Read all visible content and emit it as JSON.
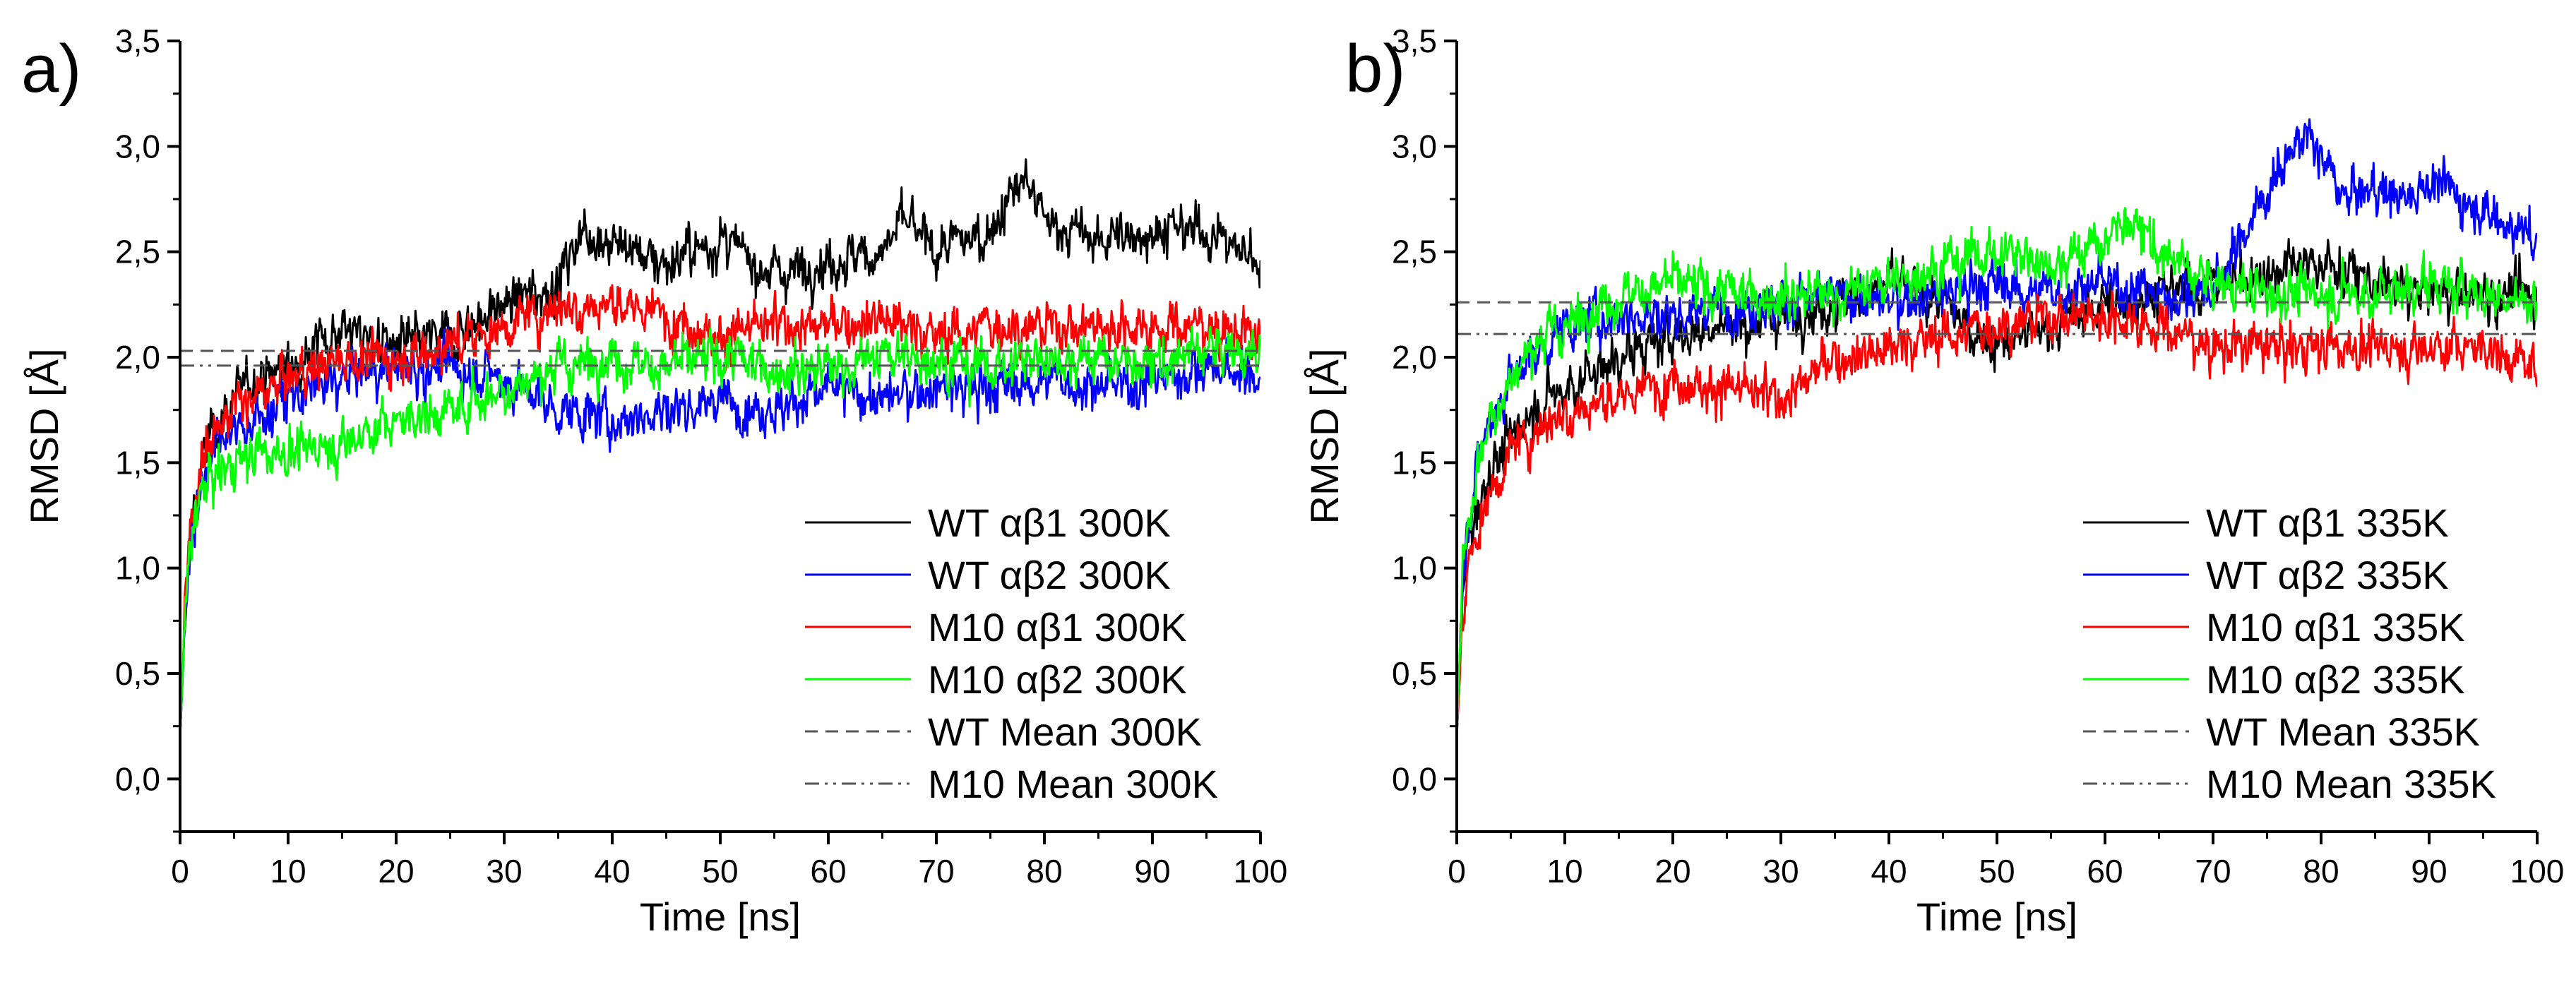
{
  "chart_data": [
    {
      "panel_label": "a)",
      "type": "line",
      "xlabel": "Time [ns]",
      "ylabel": "RMSD [Å]",
      "xlim": [
        0,
        100
      ],
      "ylim": [
        -0.25,
        3.5
      ],
      "x_ticks": [
        0,
        10,
        20,
        30,
        40,
        50,
        60,
        70,
        80,
        90,
        100
      ],
      "y_ticks": [
        0.0,
        0.5,
        1.0,
        1.5,
        2.0,
        2.5,
        3.0,
        3.5
      ],
      "y_tick_labels": [
        "0,0",
        "0,5",
        "1,0",
        "1,5",
        "2,0",
        "2,5",
        "3,0",
        "3,5"
      ],
      "legend_position": "bottom-right",
      "series": [
        {
          "name": "WT αβ1 300K",
          "color": "#000000",
          "style": "solid",
          "x": [
            0,
            0.5,
            1,
            2,
            3,
            5,
            7,
            10,
            12,
            15,
            17,
            20,
            25,
            30,
            35,
            37,
            40,
            45,
            50,
            55,
            60,
            65,
            67,
            70,
            75,
            78,
            80,
            85,
            90,
            95,
            100
          ],
          "values": [
            0.2,
            0.8,
            1.2,
            1.5,
            1.65,
            1.8,
            1.9,
            1.95,
            2.05,
            2.15,
            2.1,
            2.05,
            2.1,
            2.25,
            2.35,
            2.6,
            2.55,
            2.45,
            2.55,
            2.4,
            2.45,
            2.5,
            2.65,
            2.5,
            2.6,
            2.85,
            2.65,
            2.55,
            2.6,
            2.6,
            2.45
          ]
        },
        {
          "name": "WT αβ2 300K",
          "color": "#0000ff",
          "style": "solid",
          "x": [
            0,
            0.5,
            1,
            2,
            3,
            5,
            7,
            10,
            15,
            20,
            25,
            30,
            35,
            40,
            45,
            50,
            55,
            60,
            65,
            70,
            75,
            80,
            85,
            90,
            95,
            100
          ],
          "values": [
            0.2,
            0.8,
            1.15,
            1.4,
            1.55,
            1.65,
            1.7,
            1.8,
            1.9,
            1.95,
            1.95,
            1.9,
            1.75,
            1.7,
            1.75,
            1.8,
            1.75,
            1.85,
            1.8,
            1.85,
            1.85,
            1.9,
            1.85,
            1.9,
            1.95,
            1.9
          ]
        },
        {
          "name": "M10 αβ1 300K",
          "color": "#ff0000",
          "style": "solid",
          "x": [
            0,
            0.5,
            1,
            2,
            3,
            5,
            7,
            10,
            15,
            20,
            25,
            30,
            35,
            40,
            45,
            50,
            55,
            60,
            65,
            70,
            75,
            80,
            85,
            90,
            95,
            100
          ],
          "values": [
            0.2,
            0.85,
            1.25,
            1.5,
            1.65,
            1.75,
            1.8,
            1.9,
            2.0,
            2.0,
            2.05,
            2.15,
            2.25,
            2.25,
            2.2,
            2.1,
            2.15,
            2.15,
            2.2,
            2.1,
            2.15,
            2.15,
            2.15,
            2.15,
            2.15,
            2.1
          ]
        },
        {
          "name": "M10 αβ2 300K",
          "color": "#00ff00",
          "style": "solid",
          "x": [
            0,
            0.5,
            1,
            2,
            3,
            5,
            7,
            10,
            15,
            20,
            25,
            30,
            35,
            40,
            45,
            50,
            55,
            60,
            65,
            70,
            75,
            80,
            85,
            90,
            95,
            100
          ],
          "values": [
            0.2,
            0.8,
            1.15,
            1.35,
            1.45,
            1.5,
            1.55,
            1.55,
            1.6,
            1.7,
            1.75,
            1.85,
            1.95,
            2.0,
            1.95,
            2.0,
            1.95,
            1.95,
            2.0,
            2.0,
            1.95,
            2.0,
            2.0,
            1.95,
            2.05,
            2.0
          ]
        },
        {
          "name": "WT Mean 300K",
          "color": "#555555",
          "style": "dashed",
          "x": [
            0,
            100
          ],
          "values": [
            2.03,
            2.03
          ]
        },
        {
          "name": "M10 Mean 300K",
          "color": "#555555",
          "style": "dashdotdot",
          "x": [
            0,
            100
          ],
          "values": [
            1.96,
            1.96
          ]
        }
      ]
    },
    {
      "panel_label": "b)",
      "type": "line",
      "xlabel": "Time [ns]",
      "ylabel": "RMSD [Å]",
      "xlim": [
        0,
        100
      ],
      "ylim": [
        -0.25,
        3.5
      ],
      "x_ticks": [
        0,
        10,
        20,
        30,
        40,
        50,
        60,
        70,
        80,
        90,
        100
      ],
      "y_ticks": [
        0.0,
        0.5,
        1.0,
        1.5,
        2.0,
        2.5,
        3.0,
        3.5
      ],
      "y_tick_labels": [
        "0,0",
        "0,5",
        "1,0",
        "1,5",
        "2,0",
        "2,5",
        "3,0",
        "3,5"
      ],
      "legend_position": "bottom-right",
      "series": [
        {
          "name": "WT αβ1 335K",
          "color": "#000000",
          "style": "solid",
          "x": [
            0,
            0.5,
            1,
            2,
            3,
            5,
            7,
            10,
            15,
            20,
            25,
            30,
            35,
            40,
            45,
            50,
            55,
            60,
            65,
            70,
            75,
            80,
            85,
            90,
            95,
            100
          ],
          "values": [
            0.2,
            0.8,
            1.1,
            1.3,
            1.45,
            1.6,
            1.75,
            1.85,
            2.0,
            2.1,
            2.15,
            2.2,
            2.25,
            2.35,
            2.25,
            2.05,
            2.15,
            2.25,
            2.3,
            2.35,
            2.4,
            2.45,
            2.35,
            2.3,
            2.3,
            2.3
          ]
        },
        {
          "name": "WT αβ2 335K",
          "color": "#0000ff",
          "style": "solid",
          "x": [
            0,
            0.5,
            1,
            2,
            3,
            5,
            7,
            10,
            15,
            20,
            25,
            30,
            35,
            40,
            45,
            50,
            55,
            60,
            65,
            70,
            72,
            75,
            78,
            80,
            82,
            85,
            88,
            90,
            95,
            100
          ],
          "values": [
            0.2,
            0.9,
            1.2,
            1.5,
            1.7,
            1.9,
            2.0,
            2.15,
            2.2,
            2.2,
            2.25,
            2.25,
            2.3,
            2.25,
            2.3,
            2.35,
            2.3,
            2.35,
            2.3,
            2.3,
            2.5,
            2.8,
            3.05,
            2.95,
            2.75,
            2.8,
            2.75,
            2.85,
            2.7,
            2.55
          ]
        },
        {
          "name": "M10 αβ1 335K",
          "color": "#ff0000",
          "style": "solid",
          "x": [
            0,
            0.5,
            1,
            2,
            3,
            5,
            7,
            10,
            15,
            20,
            25,
            30,
            35,
            40,
            45,
            50,
            55,
            60,
            65,
            70,
            75,
            80,
            85,
            90,
            95,
            100
          ],
          "values": [
            0.2,
            0.7,
            1.0,
            1.2,
            1.35,
            1.55,
            1.65,
            1.75,
            1.8,
            1.9,
            1.85,
            1.8,
            2.0,
            2.05,
            2.1,
            2.15,
            2.2,
            2.2,
            2.15,
            2.05,
            2.05,
            2.05,
            2.05,
            2.05,
            2.05,
            1.95
          ]
        },
        {
          "name": "M10 αβ2 335K",
          "color": "#00ff00",
          "style": "solid",
          "x": [
            0,
            0.5,
            1,
            2,
            3,
            5,
            7,
            10,
            15,
            20,
            25,
            30,
            35,
            40,
            45,
            50,
            55,
            60,
            62,
            65,
            70,
            75,
            80,
            85,
            90,
            95,
            100
          ],
          "values": [
            0.2,
            0.9,
            1.2,
            1.5,
            1.7,
            1.9,
            2.05,
            2.15,
            2.3,
            2.35,
            2.3,
            2.3,
            2.3,
            2.35,
            2.45,
            2.5,
            2.45,
            2.55,
            2.65,
            2.5,
            2.35,
            2.3,
            2.3,
            2.3,
            2.35,
            2.3,
            2.25
          ]
        },
        {
          "name": "WT Mean 335K",
          "color": "#555555",
          "style": "dashed",
          "x": [
            0,
            100
          ],
          "values": [
            2.26,
            2.26
          ]
        },
        {
          "name": "M10 Mean 335K",
          "color": "#555555",
          "style": "dashdotdot",
          "x": [
            0,
            100
          ],
          "values": [
            2.11,
            2.11
          ]
        }
      ]
    }
  ]
}
